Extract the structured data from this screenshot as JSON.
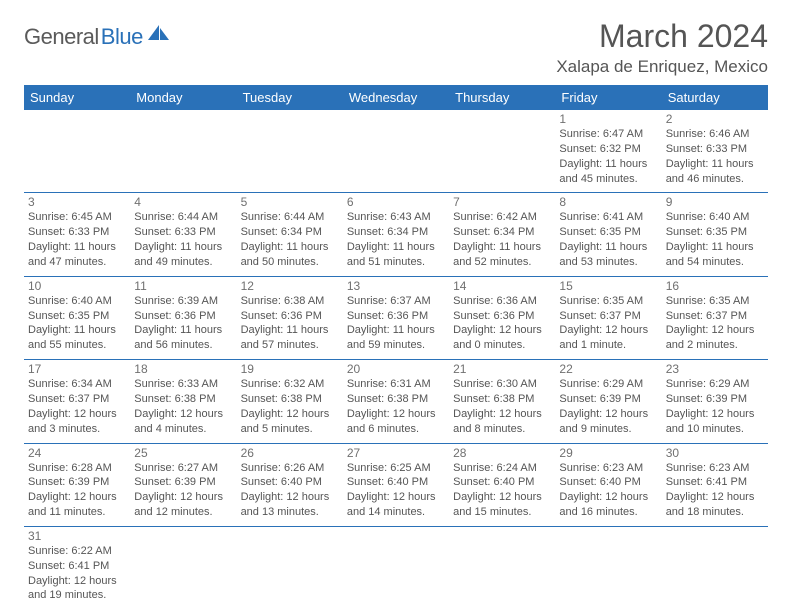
{
  "logo": {
    "part1": "General",
    "part2": "Blue"
  },
  "title": "March 2024",
  "location": "Xalapa de Enriquez, Mexico",
  "colors": {
    "header_bg": "#2a71b8",
    "header_fg": "#ffffff",
    "row_border": "#2a71b8",
    "daynum": "#707070",
    "body_text": "#555555",
    "logo_gray": "#5a5a5a",
    "logo_blue": "#2a71b8"
  },
  "dayHeaders": [
    "Sunday",
    "Monday",
    "Tuesday",
    "Wednesday",
    "Thursday",
    "Friday",
    "Saturday"
  ],
  "weeks": [
    [
      null,
      null,
      null,
      null,
      null,
      {
        "n": "1",
        "sr": "Sunrise: 6:47 AM",
        "ss": "Sunset: 6:32 PM",
        "dl1": "Daylight: 11 hours",
        "dl2": "and 45 minutes."
      },
      {
        "n": "2",
        "sr": "Sunrise: 6:46 AM",
        "ss": "Sunset: 6:33 PM",
        "dl1": "Daylight: 11 hours",
        "dl2": "and 46 minutes."
      }
    ],
    [
      {
        "n": "3",
        "sr": "Sunrise: 6:45 AM",
        "ss": "Sunset: 6:33 PM",
        "dl1": "Daylight: 11 hours",
        "dl2": "and 47 minutes."
      },
      {
        "n": "4",
        "sr": "Sunrise: 6:44 AM",
        "ss": "Sunset: 6:33 PM",
        "dl1": "Daylight: 11 hours",
        "dl2": "and 49 minutes."
      },
      {
        "n": "5",
        "sr": "Sunrise: 6:44 AM",
        "ss": "Sunset: 6:34 PM",
        "dl1": "Daylight: 11 hours",
        "dl2": "and 50 minutes."
      },
      {
        "n": "6",
        "sr": "Sunrise: 6:43 AM",
        "ss": "Sunset: 6:34 PM",
        "dl1": "Daylight: 11 hours",
        "dl2": "and 51 minutes."
      },
      {
        "n": "7",
        "sr": "Sunrise: 6:42 AM",
        "ss": "Sunset: 6:34 PM",
        "dl1": "Daylight: 11 hours",
        "dl2": "and 52 minutes."
      },
      {
        "n": "8",
        "sr": "Sunrise: 6:41 AM",
        "ss": "Sunset: 6:35 PM",
        "dl1": "Daylight: 11 hours",
        "dl2": "and 53 minutes."
      },
      {
        "n": "9",
        "sr": "Sunrise: 6:40 AM",
        "ss": "Sunset: 6:35 PM",
        "dl1": "Daylight: 11 hours",
        "dl2": "and 54 minutes."
      }
    ],
    [
      {
        "n": "10",
        "sr": "Sunrise: 6:40 AM",
        "ss": "Sunset: 6:35 PM",
        "dl1": "Daylight: 11 hours",
        "dl2": "and 55 minutes."
      },
      {
        "n": "11",
        "sr": "Sunrise: 6:39 AM",
        "ss": "Sunset: 6:36 PM",
        "dl1": "Daylight: 11 hours",
        "dl2": "and 56 minutes."
      },
      {
        "n": "12",
        "sr": "Sunrise: 6:38 AM",
        "ss": "Sunset: 6:36 PM",
        "dl1": "Daylight: 11 hours",
        "dl2": "and 57 minutes."
      },
      {
        "n": "13",
        "sr": "Sunrise: 6:37 AM",
        "ss": "Sunset: 6:36 PM",
        "dl1": "Daylight: 11 hours",
        "dl2": "and 59 minutes."
      },
      {
        "n": "14",
        "sr": "Sunrise: 6:36 AM",
        "ss": "Sunset: 6:36 PM",
        "dl1": "Daylight: 12 hours",
        "dl2": "and 0 minutes."
      },
      {
        "n": "15",
        "sr": "Sunrise: 6:35 AM",
        "ss": "Sunset: 6:37 PM",
        "dl1": "Daylight: 12 hours",
        "dl2": "and 1 minute."
      },
      {
        "n": "16",
        "sr": "Sunrise: 6:35 AM",
        "ss": "Sunset: 6:37 PM",
        "dl1": "Daylight: 12 hours",
        "dl2": "and 2 minutes."
      }
    ],
    [
      {
        "n": "17",
        "sr": "Sunrise: 6:34 AM",
        "ss": "Sunset: 6:37 PM",
        "dl1": "Daylight: 12 hours",
        "dl2": "and 3 minutes."
      },
      {
        "n": "18",
        "sr": "Sunrise: 6:33 AM",
        "ss": "Sunset: 6:38 PM",
        "dl1": "Daylight: 12 hours",
        "dl2": "and 4 minutes."
      },
      {
        "n": "19",
        "sr": "Sunrise: 6:32 AM",
        "ss": "Sunset: 6:38 PM",
        "dl1": "Daylight: 12 hours",
        "dl2": "and 5 minutes."
      },
      {
        "n": "20",
        "sr": "Sunrise: 6:31 AM",
        "ss": "Sunset: 6:38 PM",
        "dl1": "Daylight: 12 hours",
        "dl2": "and 6 minutes."
      },
      {
        "n": "21",
        "sr": "Sunrise: 6:30 AM",
        "ss": "Sunset: 6:38 PM",
        "dl1": "Daylight: 12 hours",
        "dl2": "and 8 minutes."
      },
      {
        "n": "22",
        "sr": "Sunrise: 6:29 AM",
        "ss": "Sunset: 6:39 PM",
        "dl1": "Daylight: 12 hours",
        "dl2": "and 9 minutes."
      },
      {
        "n": "23",
        "sr": "Sunrise: 6:29 AM",
        "ss": "Sunset: 6:39 PM",
        "dl1": "Daylight: 12 hours",
        "dl2": "and 10 minutes."
      }
    ],
    [
      {
        "n": "24",
        "sr": "Sunrise: 6:28 AM",
        "ss": "Sunset: 6:39 PM",
        "dl1": "Daylight: 12 hours",
        "dl2": "and 11 minutes."
      },
      {
        "n": "25",
        "sr": "Sunrise: 6:27 AM",
        "ss": "Sunset: 6:39 PM",
        "dl1": "Daylight: 12 hours",
        "dl2": "and 12 minutes."
      },
      {
        "n": "26",
        "sr": "Sunrise: 6:26 AM",
        "ss": "Sunset: 6:40 PM",
        "dl1": "Daylight: 12 hours",
        "dl2": "and 13 minutes."
      },
      {
        "n": "27",
        "sr": "Sunrise: 6:25 AM",
        "ss": "Sunset: 6:40 PM",
        "dl1": "Daylight: 12 hours",
        "dl2": "and 14 minutes."
      },
      {
        "n": "28",
        "sr": "Sunrise: 6:24 AM",
        "ss": "Sunset: 6:40 PM",
        "dl1": "Daylight: 12 hours",
        "dl2": "and 15 minutes."
      },
      {
        "n": "29",
        "sr": "Sunrise: 6:23 AM",
        "ss": "Sunset: 6:40 PM",
        "dl1": "Daylight: 12 hours",
        "dl2": "and 16 minutes."
      },
      {
        "n": "30",
        "sr": "Sunrise: 6:23 AM",
        "ss": "Sunset: 6:41 PM",
        "dl1": "Daylight: 12 hours",
        "dl2": "and 18 minutes."
      }
    ],
    [
      {
        "n": "31",
        "sr": "Sunrise: 6:22 AM",
        "ss": "Sunset: 6:41 PM",
        "dl1": "Daylight: 12 hours",
        "dl2": "and 19 minutes."
      },
      null,
      null,
      null,
      null,
      null,
      null
    ]
  ]
}
